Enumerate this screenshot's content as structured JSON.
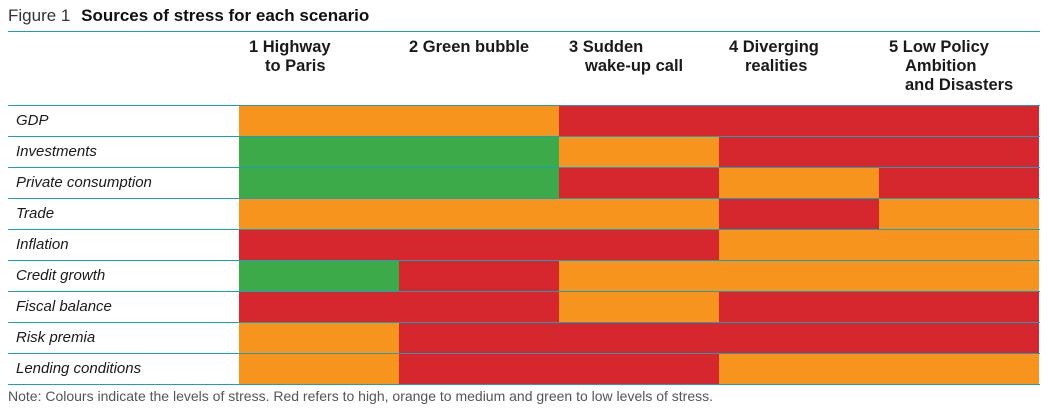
{
  "figure_label": "Figure 1",
  "title": "Sources of stress for each scenario",
  "colors": {
    "high": "#d7272e",
    "medium": "#f7941d",
    "low": "#3daa49",
    "rule": "#1aa0b8"
  },
  "chart_data": {
    "type": "table",
    "title": "Sources of stress for each scenario",
    "columns": [
      {
        "number": "1",
        "lines": [
          "Highway",
          "to Paris"
        ]
      },
      {
        "number": "2",
        "lines": [
          "Green bubble"
        ]
      },
      {
        "number": "3",
        "lines": [
          "Sudden",
          "wake-up call"
        ]
      },
      {
        "number": "4",
        "lines": [
          "Diverging",
          "realities"
        ]
      },
      {
        "number": "5",
        "lines": [
          "Low Policy",
          "Ambition",
          "and Disasters"
        ]
      }
    ],
    "rows": [
      {
        "label": "GDP",
        "levels": [
          "medium",
          "medium",
          "high",
          "high",
          "high"
        ]
      },
      {
        "label": "Investments",
        "levels": [
          "low",
          "low",
          "medium",
          "high",
          "high"
        ]
      },
      {
        "label": "Private consumption",
        "levels": [
          "low",
          "low",
          "high",
          "medium",
          "high"
        ]
      },
      {
        "label": "Trade",
        "levels": [
          "medium",
          "medium",
          "medium",
          "high",
          "medium"
        ]
      },
      {
        "label": "Inflation",
        "levels": [
          "high",
          "high",
          "high",
          "medium",
          "medium"
        ]
      },
      {
        "label": "Credit growth",
        "levels": [
          "low",
          "high",
          "medium",
          "medium",
          "medium"
        ]
      },
      {
        "label": "Fiscal balance",
        "levels": [
          "high",
          "high",
          "medium",
          "high",
          "high"
        ]
      },
      {
        "label": "Risk premia",
        "levels": [
          "medium",
          "high",
          "high",
          "high",
          "high"
        ]
      },
      {
        "label": "Lending conditions",
        "levels": [
          "medium",
          "high",
          "high",
          "medium",
          "medium"
        ]
      }
    ]
  },
  "note": "Note: Colours indicate the levels of stress. Red refers to high, orange to medium and green to low levels of stress."
}
